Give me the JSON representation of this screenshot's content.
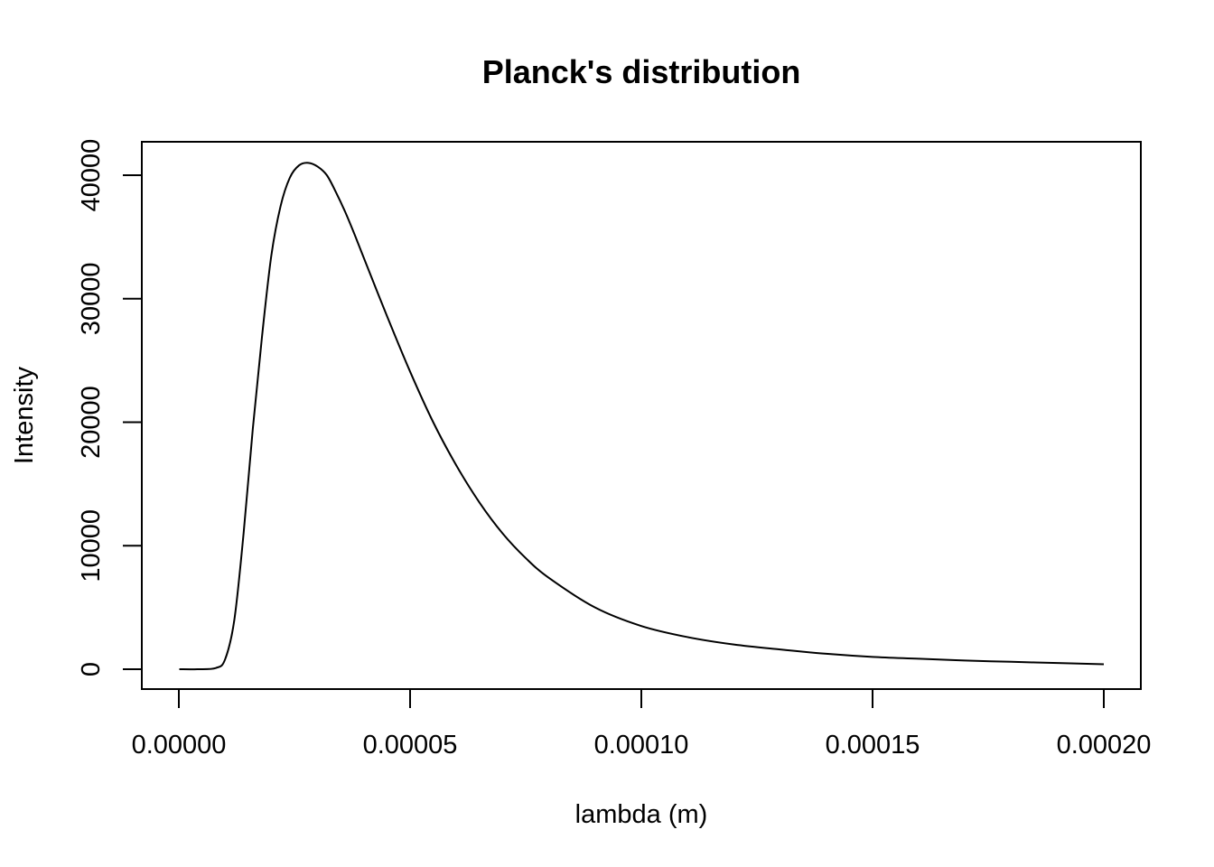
{
  "chart_data": {
    "type": "line",
    "title": "Planck's distribution",
    "xlabel": "lambda (m)",
    "ylabel": "Intensity",
    "xlim": [
      0,
      0.0002
    ],
    "ylim": [
      0,
      41000
    ],
    "x_ticks": [
      {
        "value": 0,
        "label": "0.00000"
      },
      {
        "value": 5e-05,
        "label": "0.00005"
      },
      {
        "value": 0.0001,
        "label": "0.00010"
      },
      {
        "value": 0.00015,
        "label": "0.00015"
      },
      {
        "value": 0.0002,
        "label": "0.00020"
      }
    ],
    "y_ticks": [
      {
        "value": 0,
        "label": "0"
      },
      {
        "value": 10000,
        "label": "10000"
      },
      {
        "value": 20000,
        "label": "20000"
      },
      {
        "value": 30000,
        "label": "30000"
      },
      {
        "value": 40000,
        "label": "40000"
      }
    ],
    "grid": false,
    "legend": "none",
    "series": [
      {
        "color": "#000000",
        "x": [
          1e-07,
          4e-06,
          8e-06,
          1e-05,
          1.2e-05,
          1.4e-05,
          1.6e-05,
          1.8e-05,
          2e-05,
          2.2e-05,
          2.4e-05,
          2.6e-05,
          2.8e-05,
          3e-05,
          3.2e-05,
          3.4e-05,
          3.6e-05,
          3.8e-05,
          4e-05,
          4.5e-05,
          5e-05,
          5.5e-05,
          6e-05,
          6.5e-05,
          7e-05,
          7.5e-05,
          8e-05,
          9e-05,
          0.0001,
          0.00011,
          0.00012,
          0.00013,
          0.00014,
          0.00015,
          0.00016,
          0.00017,
          0.00018,
          0.00019,
          0.0002
        ],
        "y": [
          0,
          0,
          100,
          800,
          4000,
          11000,
          19500,
          27000,
          33500,
          37500,
          39800,
          40800,
          41000,
          40700,
          40000,
          38600,
          37000,
          35200,
          33300,
          28600,
          24100,
          20000,
          16500,
          13500,
          11000,
          9000,
          7400,
          5000,
          3500,
          2600,
          2000,
          1600,
          1250,
          1000,
          850,
          700,
          600,
          500,
          400
        ]
      }
    ]
  }
}
